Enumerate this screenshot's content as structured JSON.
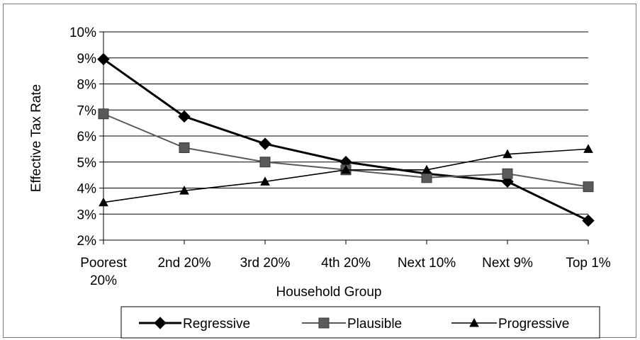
{
  "chart_data": {
    "type": "line",
    "title": "",
    "xlabel": "Household Group",
    "ylabel": "Effective Tax Rate",
    "ylim": [
      2,
      10
    ],
    "yticks": [
      "2%",
      "3%",
      "4%",
      "5%",
      "6%",
      "7%",
      "8%",
      "9%",
      "10%"
    ],
    "categories": [
      [
        "Poorest",
        "20%"
      ],
      [
        "2nd 20%"
      ],
      [
        "3rd 20%"
      ],
      [
        "4th 20%"
      ],
      [
        "Next 10%"
      ],
      [
        "Next 9%"
      ],
      [
        "Top 1%"
      ]
    ],
    "grid": true,
    "legend_position": "bottom",
    "series": [
      {
        "name": "Regressive",
        "marker": "diamond",
        "color": "#000000",
        "values": [
          8.95,
          6.75,
          5.7,
          5.0,
          4.55,
          4.25,
          2.75
        ]
      },
      {
        "name": "Plausible",
        "marker": "square",
        "color": "#5a5a5a",
        "values": [
          6.85,
          5.55,
          5.0,
          4.7,
          4.4,
          4.55,
          4.05
        ]
      },
      {
        "name": "Progressive",
        "marker": "triangle",
        "color": "#000000",
        "values": [
          3.45,
          3.9,
          4.25,
          4.7,
          4.7,
          5.3,
          5.5
        ]
      }
    ]
  }
}
